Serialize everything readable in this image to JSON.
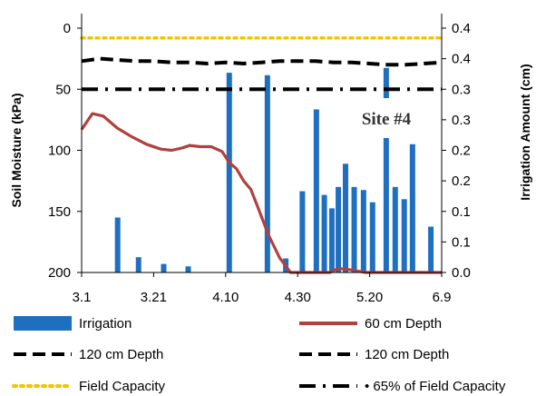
{
  "chart_data": {
    "type": "bar+line",
    "annotation": "Site #4",
    "x_ticks": [
      "3.1",
      "3.21",
      "4.10",
      "4.30",
      "5.20",
      "6.9"
    ],
    "y_left": {
      "label": "Soil Moisture (kPa)",
      "range": [
        0,
        200
      ],
      "inverted": true,
      "ticks": [
        "0",
        "50",
        "100",
        "150",
        "200"
      ]
    },
    "y_right": {
      "label": "Irrigation Amount (cm)",
      "range": [
        0,
        0.4
      ],
      "ticks": [
        "0.0",
        "0.1",
        "0.1",
        "0.2",
        "0.2",
        "0.3",
        "0.3",
        "0.4",
        "0.4"
      ]
    },
    "irrigation": {
      "name": "Irrigation",
      "color": "#1f6fc1",
      "x": [
        0.1,
        0.158,
        0.228,
        0.296,
        0.41,
        0.516,
        0.567,
        0.613,
        0.652,
        0.674,
        0.695,
        0.713,
        0.733,
        0.757,
        0.783,
        0.808,
        0.846,
        0.871,
        0.896,
        0.919,
        0.97,
        1.078
      ],
      "values": [
        0.09,
        0.025,
        0.014,
        0.01,
        0.327,
        0.323,
        0.023,
        0.133,
        0.267,
        0.127,
        0.105,
        0.14,
        0.178,
        0.14,
        0.135,
        0.115,
        0.335,
        0.14,
        0.12,
        0.21,
        0.075,
        0.13
      ]
    },
    "series": [
      {
        "name": "60 cm Depth",
        "color": "#b0413e",
        "style": "solid",
        "x": [
          0,
          0.03,
          0.06,
          0.1,
          0.14,
          0.18,
          0.22,
          0.25,
          0.28,
          0.3,
          0.33,
          0.36,
          0.39,
          0.41,
          0.43,
          0.45,
          0.47,
          0.49,
          0.52,
          0.55,
          0.58,
          0.61,
          0.63,
          0.65,
          0.67,
          0.69,
          0.71,
          0.73,
          0.75,
          0.77,
          0.79,
          0.81,
          0.84,
          0.87,
          0.9,
          0.93,
          0.96,
          1.0
        ],
        "values": [
          83,
          70,
          72,
          82,
          89,
          95,
          99,
          100,
          98,
          96,
          97,
          97,
          101,
          110,
          115,
          125,
          132,
          147,
          170,
          188,
          200,
          200,
          200,
          200,
          200,
          200,
          197,
          197,
          198,
          199,
          200,
          200,
          200,
          200,
          200,
          200,
          200,
          200
        ]
      },
      {
        "name": "120 cm Depth",
        "color": "#000000",
        "style": "dashed",
        "x": [
          0,
          0.05,
          0.1,
          0.15,
          0.2,
          0.25,
          0.3,
          0.35,
          0.4,
          0.45,
          0.5,
          0.55,
          0.6,
          0.65,
          0.7,
          0.75,
          0.8,
          0.85,
          0.9,
          0.95,
          1.0
        ],
        "values": [
          27,
          25,
          26,
          27,
          27,
          28,
          28,
          29,
          28,
          29,
          28,
          27,
          27,
          27,
          28,
          28,
          29,
          30,
          30,
          29,
          28
        ]
      },
      {
        "name": "120 cm Depth",
        "color": "#000000",
        "style": "dashed",
        "x": [],
        "values": []
      },
      {
        "name": "Field Capacity",
        "color": "#f4c400",
        "style": "dotted",
        "x": [
          0,
          1.0
        ],
        "values": [
          8,
          8
        ]
      },
      {
        "name": "65% of Field Capacity",
        "color": "#000000",
        "style": "dash-dot",
        "x": [
          0,
          1.0
        ],
        "values": [
          50,
          50
        ]
      }
    ],
    "legend": [
      {
        "label": "Irrigation",
        "kind": "bar",
        "color": "#1f6fc1"
      },
      {
        "label": "60 cm Depth",
        "kind": "line",
        "color": "#b0413e",
        "style": "solid"
      },
      {
        "label": "120 cm Depth",
        "kind": "line",
        "color": "#000000",
        "style": "dashed"
      },
      {
        "label": "120 cm Depth",
        "kind": "line",
        "color": "#000000",
        "style": "dashed"
      },
      {
        "label": "Field Capacity",
        "kind": "line",
        "color": "#f4c400",
        "style": "dotted"
      },
      {
        "label": "• 65% of Field Capacity",
        "kind": "line",
        "color": "#000000",
        "style": "dash-dot"
      }
    ],
    "legend_placement": "bottom",
    "grid": false
  }
}
